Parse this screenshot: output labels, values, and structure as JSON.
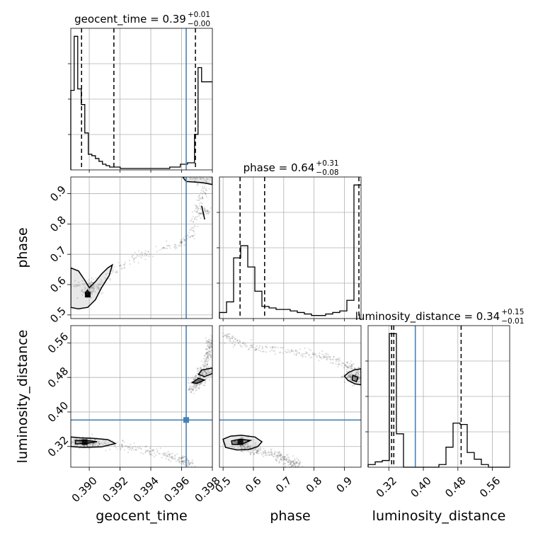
{
  "chart_data": {
    "type": "corner",
    "parameters": [
      {
        "name": "geocent_time",
        "xlabel": "geocent_time",
        "ylabel": "",
        "range": [
          0.3888,
          0.398
        ],
        "ticks": [
          0.39,
          0.392,
          0.394,
          0.396,
          0.398
        ],
        "tick_labels": [
          "0.390",
          "0.392",
          "0.394",
          "0.396",
          "0.398"
        ],
        "title_main": "geocent_time = 0.39",
        "title_plus": "+0.01",
        "title_minus": "−0.00",
        "quantiles": [
          0.3895,
          0.3916,
          0.3969
        ],
        "truth": 0.3963,
        "hist_bins": [
          0.3888,
          0.38902,
          0.38925,
          0.38948,
          0.38971,
          0.38994,
          0.39017,
          0.3904,
          0.39063,
          0.39086,
          0.39109,
          0.39132,
          0.39155,
          0.39178,
          0.39201,
          0.39224,
          0.39247,
          0.3927,
          0.39293,
          0.39316,
          0.39339,
          0.39362,
          0.39385,
          0.39408,
          0.39431,
          0.39454,
          0.39477,
          0.395,
          0.39523,
          0.39546,
          0.39569,
          0.39592,
          0.39615,
          0.39638,
          0.39661,
          0.39684,
          0.39707,
          0.3973,
          0.39753,
          0.39776,
          0.398
        ],
        "hist_values": [
          0.56,
          0.94,
          0.57,
          0.46,
          0.26,
          0.11,
          0.1,
          0.08,
          0.06,
          0.04,
          0.03,
          0.02,
          0.02,
          0.02,
          0.01,
          0.01,
          0.01,
          0.01,
          0.01,
          0.01,
          0.01,
          0.01,
          0.01,
          0.01,
          0.01,
          0.01,
          0.01,
          0.01,
          0.02,
          0.02,
          0.02,
          0.04,
          0.04,
          0.05,
          0.05,
          0.25,
          0.72,
          0.62,
          0.62,
          0.62
        ]
      },
      {
        "name": "phase",
        "xlabel": "phase",
        "ylabel": "phase",
        "range": [
          0.488,
          0.955
        ],
        "ticks": [
          0.5,
          0.6,
          0.7,
          0.8,
          0.9
        ],
        "tick_labels": [
          "0.5",
          "0.6",
          "0.7",
          "0.8",
          "0.9"
        ],
        "title_main": "phase = 0.64",
        "title_plus": "+0.31",
        "title_minus": "−0.08",
        "quantiles": [
          0.556,
          0.637,
          0.948
        ],
        "truth": null,
        "hist_bins": [
          0.488,
          0.51135,
          0.5347,
          0.55805,
          0.5814,
          0.60475,
          0.6281,
          0.65145,
          0.6748,
          0.69815,
          0.7215,
          0.74485,
          0.7682,
          0.79155,
          0.8149,
          0.83825,
          0.8616,
          0.88495,
          0.9083,
          0.93165,
          0.955
        ],
        "hist_values": [
          0.04,
          0.11,
          0.4,
          0.48,
          0.34,
          0.18,
          0.08,
          0.07,
          0.06,
          0.06,
          0.05,
          0.04,
          0.03,
          0.02,
          0.02,
          0.03,
          0.04,
          0.05,
          0.12,
          0.88
        ]
      },
      {
        "name": "luminosity_distance",
        "xlabel": "luminosity_distance",
        "ylabel": "luminosity_distance",
        "range": [
          0.272,
          0.6
        ],
        "ticks": [
          0.32,
          0.4,
          0.48,
          0.56
        ],
        "tick_labels": [
          "0.32",
          "0.40",
          "0.48",
          "0.56"
        ],
        "title_main": "luminosity_distance = 0.34",
        "title_plus": "+0.15",
        "title_minus": "−0.01",
        "quantiles": [
          0.3265,
          0.3315,
          0.4875
        ],
        "truth": 0.3814,
        "hist_bins": [
          0.272,
          0.2884,
          0.3048,
          0.3212,
          0.3376,
          0.354,
          0.3704,
          0.3868,
          0.4032,
          0.4196,
          0.436,
          0.4524,
          0.4688,
          0.4852,
          0.5016,
          0.518,
          0.5344,
          0.5508,
          0.5672,
          0.5836,
          0.6
        ],
        "hist_values": [
          0.02,
          0.04,
          0.05,
          1.0,
          0.25,
          0.0,
          0.0,
          0.0,
          0.0,
          0.0,
          0.02,
          0.15,
          0.33,
          0.32,
          0.11,
          0.06,
          0.02,
          0.0,
          0.0,
          0.0
        ]
      }
    ],
    "joint": [
      {
        "x": "geocent_time",
        "y": "phase",
        "truth": [
          0.3963,
          null
        ],
        "peak": [
          0.3899,
          0.567
        ],
        "contours": [
          [
            [
              0.3888,
              0.655
            ],
            [
              0.3893,
              0.645
            ],
            [
              0.3897,
              0.615
            ],
            [
              0.39,
              0.59
            ],
            [
              0.3904,
              0.61
            ],
            [
              0.3908,
              0.635
            ],
            [
              0.3912,
              0.655
            ],
            [
              0.3915,
              0.665
            ],
            [
              0.3913,
              0.63
            ],
            [
              0.3908,
              0.59
            ],
            [
              0.3904,
              0.55
            ],
            [
              0.3899,
              0.525
            ],
            [
              0.3893,
              0.52
            ],
            [
              0.3888,
              0.525
            ]
          ],
          [
            [
              0.38975,
              0.571
            ],
            [
              0.38988,
              0.582
            ],
            [
              0.39002,
              0.57
            ],
            [
              0.38988,
              0.56
            ]
          ],
          [
            [
              0.3961,
              0.953
            ],
            [
              0.3964,
              0.961
            ],
            [
              0.397,
              0.966
            ],
            [
              0.3975,
              0.958
            ],
            [
              0.398,
              0.955
            ],
            [
              0.398,
              0.93
            ],
            [
              0.3974,
              0.936
            ],
            [
              0.3969,
              0.938
            ],
            [
              0.3963,
              0.94
            ]
          ],
          [
            [
              0.3973,
              0.86
            ],
            [
              0.3974,
              0.838
            ],
            [
              0.3975,
              0.815
            ]
          ]
        ],
        "samples": [
          [
            0.3888,
            0.5
          ],
          [
            0.3888,
            0.5
          ],
          [
            0.3888,
            0.5
          ],
          [
            0.3888,
            0.5
          ],
          [
            0.3888,
            0.5
          ],
          [
            0.3888,
            0.5
          ]
        ]
      },
      {
        "x": "geocent_time",
        "y": "luminosity_distance",
        "truth": [
          0.3963,
          0.3814
        ],
        "peak": [
          0.3897,
          0.33
        ],
        "contours": [
          [
            [
              0.3888,
              0.342
            ],
            [
              0.3894,
              0.34
            ],
            [
              0.3902,
              0.339
            ],
            [
              0.3912,
              0.336
            ],
            [
              0.3917,
              0.327
            ],
            [
              0.3908,
              0.319
            ],
            [
              0.3896,
              0.318
            ],
            [
              0.3888,
              0.32
            ]
          ],
          [
            [
              0.3891,
              0.334
            ],
            [
              0.3898,
              0.334
            ],
            [
              0.3905,
              0.331
            ],
            [
              0.3898,
              0.327
            ],
            [
              0.3891,
              0.326
            ]
          ],
          [
            [
              0.3971,
              0.487
            ],
            [
              0.3973,
              0.497
            ],
            [
              0.398,
              0.502
            ],
            [
              0.398,
              0.489
            ],
            [
              0.3975,
              0.482
            ]
          ],
          [
            [
              0.3967,
              0.468
            ],
            [
              0.3971,
              0.478
            ],
            [
              0.3975,
              0.474
            ],
            [
              0.397,
              0.466
            ]
          ]
        ],
        "samples": [
          [
            0.3888,
            0.3
          ],
          [
            0.3888,
            0.3
          ],
          [
            0.3888,
            0.3
          ],
          [
            0.3888,
            0.3
          ]
        ]
      },
      {
        "x": "phase",
        "y": "luminosity_distance",
        "truth": [
          null,
          0.3814
        ],
        "peak": [
          0.557,
          0.33
        ],
        "contours": [
          [
            [
              0.5,
              0.337
            ],
            [
              0.525,
              0.344
            ],
            [
              0.56,
              0.346
            ],
            [
              0.605,
              0.342
            ],
            [
              0.628,
              0.331
            ],
            [
              0.615,
              0.32
            ],
            [
              0.585,
              0.313
            ],
            [
              0.545,
              0.312
            ],
            [
              0.508,
              0.318
            ]
          ],
          [
            [
              0.528,
              0.333
            ],
            [
              0.557,
              0.337
            ],
            [
              0.59,
              0.334
            ],
            [
              0.56,
              0.325
            ],
            [
              0.53,
              0.325
            ]
          ],
          [
            [
              0.955,
              0.5
            ],
            [
              0.935,
              0.498
            ],
            [
              0.915,
              0.492
            ],
            [
              0.9,
              0.483
            ],
            [
              0.912,
              0.473
            ],
            [
              0.935,
              0.465
            ],
            [
              0.955,
              0.463
            ]
          ],
          [
            [
              0.928,
              0.485
            ],
            [
              0.945,
              0.48
            ],
            [
              0.94,
              0.47
            ],
            [
              0.926,
              0.474
            ]
          ]
        ],
        "samples": [
          [
            0.488,
            0.3
          ],
          [
            0.488,
            0.3
          ],
          [
            0.488,
            0.3
          ],
          [
            0.488,
            0.3
          ]
        ]
      }
    ]
  }
}
